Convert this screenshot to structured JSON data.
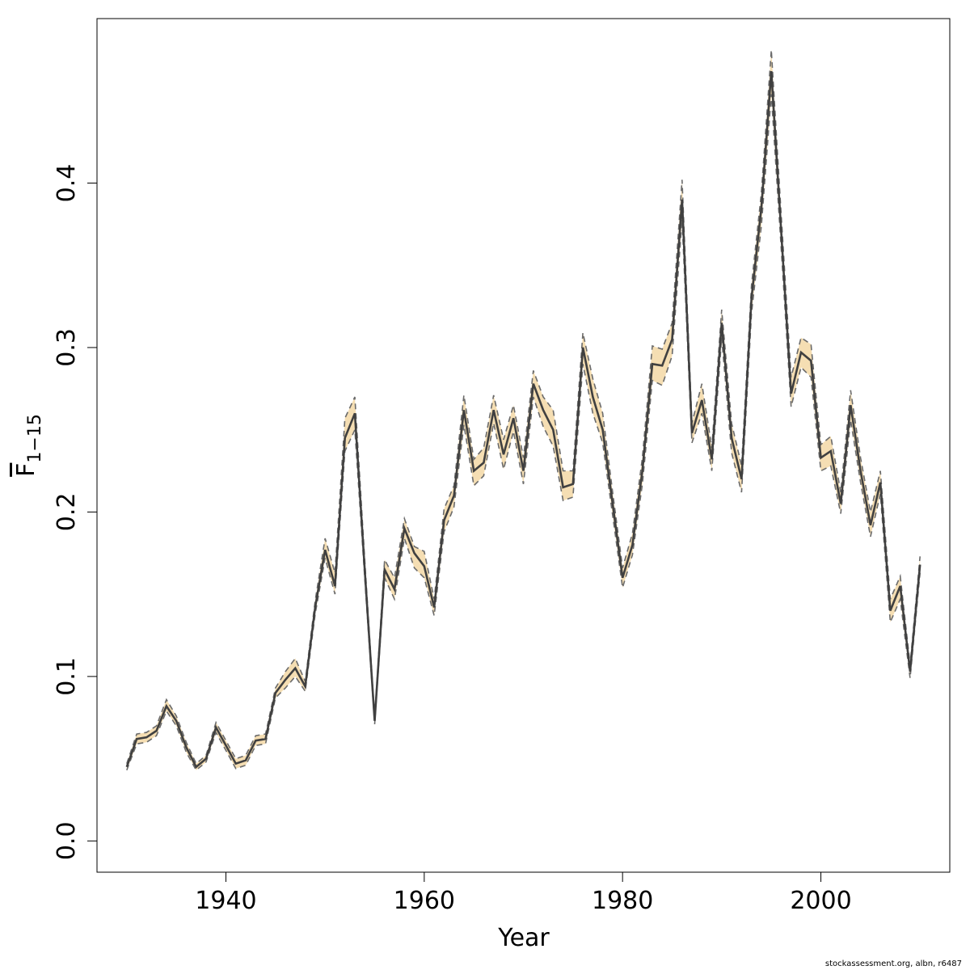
{
  "chart_data": {
    "type": "line",
    "title": "",
    "xlabel": "Year",
    "ylabel": "F",
    "ylabel_subscript": "1−15",
    "xlim": [
      1927,
      2013
    ],
    "ylim": [
      -0.019,
      0.5
    ],
    "x_ticks": [
      1940,
      1960,
      1980,
      2000
    ],
    "x_tick_labels": [
      "1940",
      "1960",
      "1980",
      "2000"
    ],
    "y_ticks": [
      0.0,
      0.1,
      0.2,
      0.3,
      0.4
    ],
    "y_tick_labels": [
      "0.0",
      "0.1",
      "0.2",
      "0.3",
      "0.4"
    ],
    "grid": false,
    "colors": {
      "band": "#f5deb3",
      "line": "#404040",
      "dashed": "#6b6b6b",
      "axis": "#000000"
    },
    "series": [
      {
        "x": [
          1930,
          1931,
          1932,
          1933,
          1934,
          1935,
          1936,
          1937,
          1938,
          1939,
          1940,
          1941,
          1942,
          1943,
          1944,
          1945,
          1946,
          1947,
          1948,
          1949,
          1950,
          1951,
          1952,
          1953,
          1954,
          1955,
          1956,
          1957,
          1958,
          1959,
          1960,
          1961,
          1962,
          1963,
          1964,
          1965,
          1966,
          1967,
          1968,
          1969,
          1970,
          1971,
          1972,
          1973,
          1974,
          1975,
          1976,
          1977,
          1978,
          1979,
          1980,
          1981,
          1982,
          1983,
          1984,
          1985,
          1986,
          1987,
          1988,
          1989,
          1990,
          1991,
          1992,
          1993,
          1994,
          1995,
          1996,
          1997,
          1998,
          1999,
          2000,
          2001,
          2002,
          2003,
          2004,
          2005,
          2006,
          2007,
          2008,
          2009,
          2010
        ],
        "y": [
          0.045,
          0.062,
          0.063,
          0.067,
          0.082,
          0.073,
          0.057,
          0.045,
          0.05,
          0.069,
          0.058,
          0.047,
          0.049,
          0.061,
          0.062,
          0.09,
          0.098,
          0.105,
          0.094,
          0.142,
          0.177,
          0.155,
          0.245,
          0.26,
          0.165,
          0.073,
          0.165,
          0.153,
          0.19,
          0.175,
          0.167,
          0.142,
          0.195,
          0.21,
          0.262,
          0.225,
          0.23,
          0.262,
          0.235,
          0.257,
          0.225,
          0.278,
          0.262,
          0.25,
          0.215,
          0.217,
          0.3,
          0.27,
          0.25,
          0.205,
          0.16,
          0.18,
          0.225,
          0.29,
          0.289,
          0.305,
          0.39,
          0.248,
          0.268,
          0.232,
          0.315,
          0.245,
          0.22,
          0.33,
          0.385,
          0.468,
          0.37,
          0.272,
          0.297,
          0.292,
          0.233,
          0.237,
          0.205,
          0.265,
          0.225,
          0.192,
          0.218,
          0.14,
          0.155,
          0.103,
          0.168
        ],
        "lower": [
          0.043,
          0.059,
          0.06,
          0.064,
          0.079,
          0.07,
          0.054,
          0.043,
          0.048,
          0.066,
          0.055,
          0.044,
          0.046,
          0.058,
          0.059,
          0.087,
          0.093,
          0.1,
          0.091,
          0.138,
          0.172,
          0.15,
          0.237,
          0.25,
          0.16,
          0.071,
          0.16,
          0.147,
          0.184,
          0.166,
          0.16,
          0.137,
          0.188,
          0.203,
          0.253,
          0.216,
          0.222,
          0.254,
          0.226,
          0.249,
          0.217,
          0.27,
          0.252,
          0.24,
          0.207,
          0.209,
          0.29,
          0.26,
          0.242,
          0.198,
          0.154,
          0.174,
          0.217,
          0.28,
          0.277,
          0.295,
          0.378,
          0.242,
          0.26,
          0.225,
          0.306,
          0.236,
          0.212,
          0.321,
          0.374,
          0.454,
          0.36,
          0.264,
          0.288,
          0.282,
          0.225,
          0.228,
          0.199,
          0.256,
          0.218,
          0.185,
          0.211,
          0.133,
          0.147,
          0.099,
          0.163
        ],
        "upper": [
          0.047,
          0.065,
          0.066,
          0.07,
          0.086,
          0.076,
          0.06,
          0.047,
          0.052,
          0.072,
          0.061,
          0.05,
          0.052,
          0.064,
          0.065,
          0.093,
          0.103,
          0.111,
          0.097,
          0.146,
          0.184,
          0.163,
          0.257,
          0.27,
          0.171,
          0.075,
          0.171,
          0.16,
          0.196,
          0.179,
          0.176,
          0.147,
          0.202,
          0.216,
          0.271,
          0.232,
          0.239,
          0.271,
          0.244,
          0.265,
          0.233,
          0.286,
          0.27,
          0.262,
          0.225,
          0.225,
          0.309,
          0.281,
          0.26,
          0.212,
          0.166,
          0.187,
          0.233,
          0.301,
          0.299,
          0.315,
          0.402,
          0.254,
          0.278,
          0.239,
          0.323,
          0.254,
          0.228,
          0.338,
          0.394,
          0.481,
          0.38,
          0.282,
          0.306,
          0.302,
          0.241,
          0.246,
          0.212,
          0.274,
          0.233,
          0.2,
          0.225,
          0.147,
          0.161,
          0.107,
          0.173
        ]
      }
    ]
  },
  "footer": {
    "credit": "stockassessment.org, albn, r6487"
  }
}
